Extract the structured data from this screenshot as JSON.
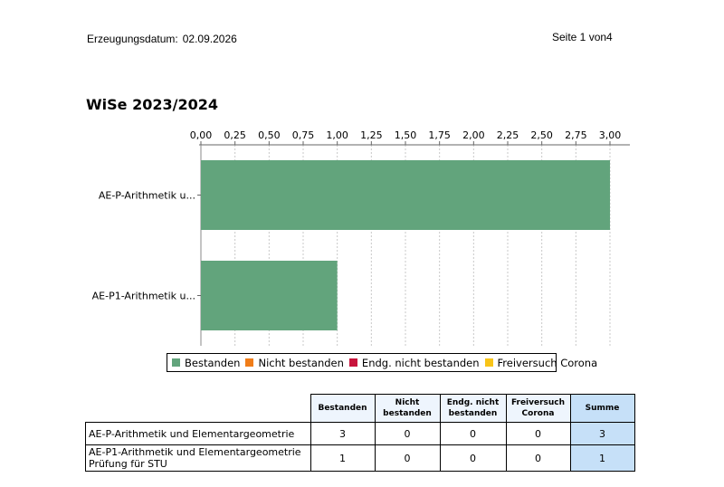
{
  "header": {
    "date_label": "Erzeugungsdatum:",
    "date_value": "02.09.2026",
    "page_label": "Seite 1 von4"
  },
  "chart_data": {
    "type": "bar",
    "orientation": "horizontal",
    "title": "WiSe 2023/2024",
    "categories": [
      "AE-P-Arithmetik u...",
      "AE-P1-Arithmetik u..."
    ],
    "series": [
      {
        "name": "Bestanden",
        "values": [
          3,
          1
        ],
        "color": "#62a47c"
      },
      {
        "name": "Nicht bestanden",
        "values": [
          0,
          0
        ],
        "color": "#f07d19"
      },
      {
        "name": "Endg. nicht bestanden",
        "values": [
          0,
          0
        ],
        "color": "#c8143c"
      },
      {
        "name": "Freiversuch Corona",
        "values": [
          0,
          0
        ],
        "color": "#f8c418"
      }
    ],
    "xlim": [
      0,
      3
    ],
    "x_ticks": [
      "0,00",
      "0,25",
      "0,50",
      "0,75",
      "1,00",
      "1,25",
      "1,50",
      "1,75",
      "2,00",
      "2,25",
      "2,50",
      "2,75",
      "3,00"
    ],
    "grid": true,
    "legend_position": "bottom"
  },
  "table": {
    "headers": [
      "Bestanden",
      "Nicht\nbestanden",
      "Endg. nicht\nbestanden",
      "Freiversuch\nCorona",
      "Summe"
    ],
    "rows": [
      {
        "name": "AE-P-Arithmetik und Elementargeometrie",
        "cells": [
          "3",
          "0",
          "0",
          "0",
          "3"
        ]
      },
      {
        "name": "AE-P1-Arithmetik und Elementargeometrie\nPrüfung für STU",
        "cells": [
          "1",
          "0",
          "0",
          "0",
          "1"
        ]
      }
    ]
  }
}
